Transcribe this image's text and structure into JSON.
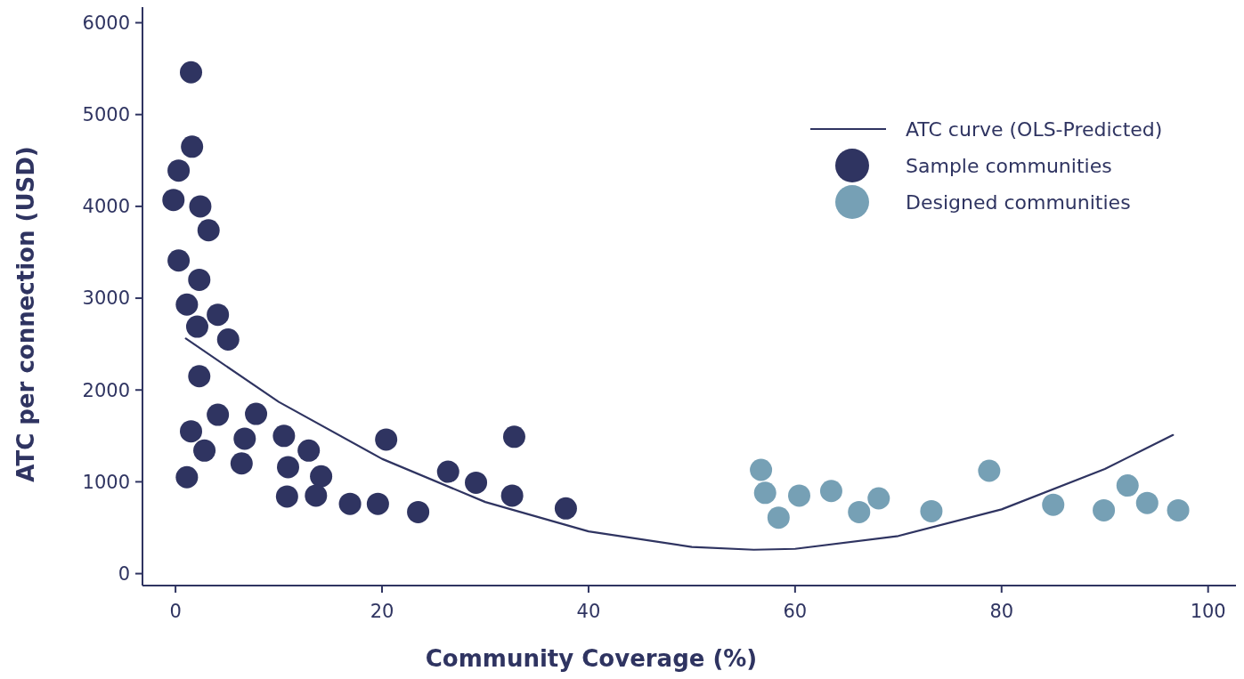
{
  "chart_data": {
    "type": "scatter",
    "xlabel": "Community Coverage (%)",
    "ylabel": "ATC per connection (USD)",
    "xlim": [
      -3.2,
      102.7
    ],
    "ylim": [
      -130,
      6170
    ],
    "xticks": [
      0,
      20,
      40,
      60,
      80,
      100
    ],
    "yticks": [
      0,
      1000,
      2000,
      3000,
      4000,
      5000,
      6000
    ],
    "grid": false,
    "legend": "top right",
    "series": [
      {
        "name": "ATC curve (OLS-Predicted)",
        "type": "line",
        "marker": "none",
        "line_style": "solid",
        "color": "#2f3461",
        "x": [
          1,
          10,
          20,
          30,
          40,
          50,
          56,
          60,
          70,
          80,
          90,
          96.6
        ],
        "values": [
          2560,
          1870,
          1250,
          780,
          460,
          290,
          260,
          270,
          410,
          700,
          1140,
          1510
        ]
      },
      {
        "name": "Sample communities",
        "marker": "circle",
        "color": "#2f3461",
        "x": [
          1.5,
          1.6,
          0.3,
          -0.2,
          2.4,
          3.2,
          0.3,
          2.3,
          1.1,
          4.1,
          2.1,
          5.1,
          2.3,
          4.1,
          7.8,
          1.5,
          6.7,
          2.8,
          6.4,
          1.1,
          10.5,
          12.9,
          10.9,
          14.1,
          10.8,
          13.6,
          16.9,
          19.6,
          20.4,
          23.5,
          26.4,
          29.1,
          32.8,
          32.6,
          37.8
        ],
        "values": [
          5460,
          4650,
          4390,
          4070,
          4000,
          3740,
          3410,
          3200,
          2930,
          2820,
          2690,
          2550,
          2150,
          1730,
          1740,
          1550,
          1470,
          1340,
          1200,
          1050,
          1500,
          1340,
          1160,
          1060,
          840,
          850,
          760,
          760,
          1460,
          670,
          1110,
          990,
          1490,
          850,
          710
        ]
      },
      {
        "name": "Designed communities",
        "marker": "circle",
        "color": "#76a0b5",
        "x": [
          56.7,
          57.1,
          58.4,
          60.4,
          63.5,
          66.2,
          68.1,
          73.2,
          78.8,
          85.0,
          89.9,
          92.2,
          94.1,
          97.1
        ],
        "values": [
          1130,
          880,
          610,
          850,
          900,
          670,
          820,
          680,
          1120,
          750,
          690,
          960,
          770,
          690
        ]
      }
    ]
  }
}
